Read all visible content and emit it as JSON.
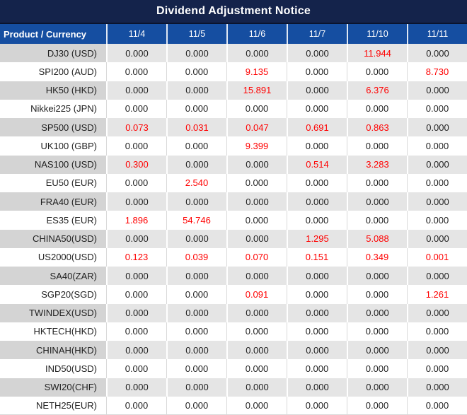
{
  "title": "Dividend Adjustment Notice",
  "chart_data": {
    "type": "table",
    "title": "Dividend Adjustment Notice",
    "columns": [
      "Product / Currency",
      "11/4",
      "11/5",
      "11/6",
      "11/7",
      "11/10",
      "11/11"
    ],
    "value_style_rule": "non-zero values shown in red, zeros in black",
    "rows": [
      {
        "product": "DJ30 (USD)",
        "values": [
          "0.000",
          "0.000",
          "0.000",
          "0.000",
          "11.944",
          "0.000"
        ]
      },
      {
        "product": "SPI200 (AUD)",
        "values": [
          "0.000",
          "0.000",
          "9.135",
          "0.000",
          "0.000",
          "8.730"
        ]
      },
      {
        "product": "HK50 (HKD)",
        "values": [
          "0.000",
          "0.000",
          "15.891",
          "0.000",
          "6.376",
          "0.000"
        ]
      },
      {
        "product": "Nikkei225 (JPN)",
        "values": [
          "0.000",
          "0.000",
          "0.000",
          "0.000",
          "0.000",
          "0.000"
        ]
      },
      {
        "product": "SP500 (USD)",
        "values": [
          "0.073",
          "0.031",
          "0.047",
          "0.691",
          "0.863",
          "0.000"
        ]
      },
      {
        "product": "UK100 (GBP)",
        "values": [
          "0.000",
          "0.000",
          "9.399",
          "0.000",
          "0.000",
          "0.000"
        ]
      },
      {
        "product": "NAS100 (USD)",
        "values": [
          "0.300",
          "0.000",
          "0.000",
          "0.514",
          "3.283",
          "0.000"
        ]
      },
      {
        "product": "EU50 (EUR)",
        "values": [
          "0.000",
          "2.540",
          "0.000",
          "0.000",
          "0.000",
          "0.000"
        ]
      },
      {
        "product": "FRA40 (EUR)",
        "values": [
          "0.000",
          "0.000",
          "0.000",
          "0.000",
          "0.000",
          "0.000"
        ]
      },
      {
        "product": "ES35 (EUR)",
        "values": [
          "1.896",
          "54.746",
          "0.000",
          "0.000",
          "0.000",
          "0.000"
        ]
      },
      {
        "product": "CHINA50(USD)",
        "values": [
          "0.000",
          "0.000",
          "0.000",
          "1.295",
          "5.088",
          "0.000"
        ]
      },
      {
        "product": "US2000(USD)",
        "values": [
          "0.123",
          "0.039",
          "0.070",
          "0.151",
          "0.349",
          "0.001"
        ]
      },
      {
        "product": "SA40(ZAR)",
        "values": [
          "0.000",
          "0.000",
          "0.000",
          "0.000",
          "0.000",
          "0.000"
        ]
      },
      {
        "product": "SGP20(SGD)",
        "values": [
          "0.000",
          "0.000",
          "0.091",
          "0.000",
          "0.000",
          "1.261"
        ]
      },
      {
        "product": "TWINDEX(USD)",
        "values": [
          "0.000",
          "0.000",
          "0.000",
          "0.000",
          "0.000",
          "0.000"
        ]
      },
      {
        "product": "HKTECH(HKD)",
        "values": [
          "0.000",
          "0.000",
          "0.000",
          "0.000",
          "0.000",
          "0.000"
        ]
      },
      {
        "product": "CHINAH(HKD)",
        "values": [
          "0.000",
          "0.000",
          "0.000",
          "0.000",
          "0.000",
          "0.000"
        ]
      },
      {
        "product": "IND50(USD)",
        "values": [
          "0.000",
          "0.000",
          "0.000",
          "0.000",
          "0.000",
          "0.000"
        ]
      },
      {
        "product": "SWI20(CHF)",
        "values": [
          "0.000",
          "0.000",
          "0.000",
          "0.000",
          "0.000",
          "0.000"
        ]
      },
      {
        "product": "NETH25(EUR)",
        "values": [
          "0.000",
          "0.000",
          "0.000",
          "0.000",
          "0.000",
          "0.000"
        ]
      }
    ]
  },
  "colors": {
    "title_bg": "#14234B",
    "header_bg": "#154EA1",
    "red": "#FF0000",
    "text": "#1F1F1F",
    "alt_bg": "#E5E5E5",
    "alt_product_bg": "#D4D4D4",
    "sep_light": "#D9D9D9"
  }
}
